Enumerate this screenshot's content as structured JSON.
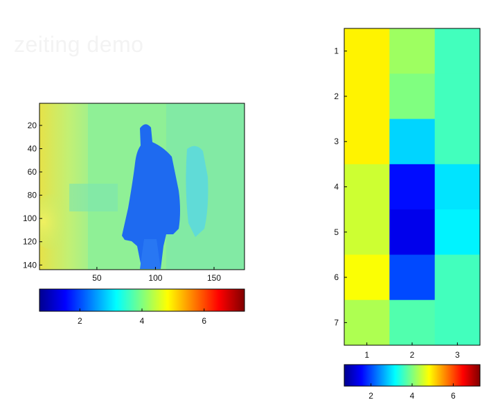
{
  "window": {
    "title": "zeiting demo"
  },
  "chart_data": [
    {
      "type": "heatmap",
      "title": "",
      "xlabel": "",
      "ylabel": "",
      "x_ticks": [
        50,
        100,
        150
      ],
      "y_ticks": [
        20,
        40,
        60,
        80,
        100,
        120,
        140
      ],
      "xlim": [
        1,
        176
      ],
      "ylim": [
        1,
        144
      ],
      "y_direction": "reversed",
      "description_values": "depth map: background mostly values 3.5-4.5, person silhouette around 2.0, left wall around 4.8-5.2",
      "background_value": 3.9,
      "person_value": 2.0,
      "colorbar": {
        "ticks": [
          2,
          4,
          6
        ],
        "range": [
          0.7,
          7.3
        ],
        "colormap": "jet",
        "orientation": "horizontal"
      }
    },
    {
      "type": "heatmap",
      "title": "",
      "xlabel": "",
      "ylabel": "",
      "x_ticks": [
        1,
        2,
        3
      ],
      "y_ticks": [
        1,
        2,
        3,
        4,
        5,
        6,
        7
      ],
      "y_direction": "reversed",
      "values": [
        [
          4.9,
          4.2,
          3.6
        ],
        [
          4.9,
          4.0,
          3.6
        ],
        [
          4.9,
          2.9,
          3.6
        ],
        [
          4.5,
          1.6,
          3.0
        ],
        [
          4.5,
          1.4,
          3.1
        ],
        [
          4.8,
          2.0,
          3.6
        ],
        [
          4.3,
          3.7,
          3.6
        ]
      ],
      "colorbar": {
        "ticks": [
          2,
          4,
          6
        ],
        "range": [
          0.7,
          7.3
        ],
        "colormap": "jet",
        "orientation": "horizontal"
      }
    }
  ]
}
